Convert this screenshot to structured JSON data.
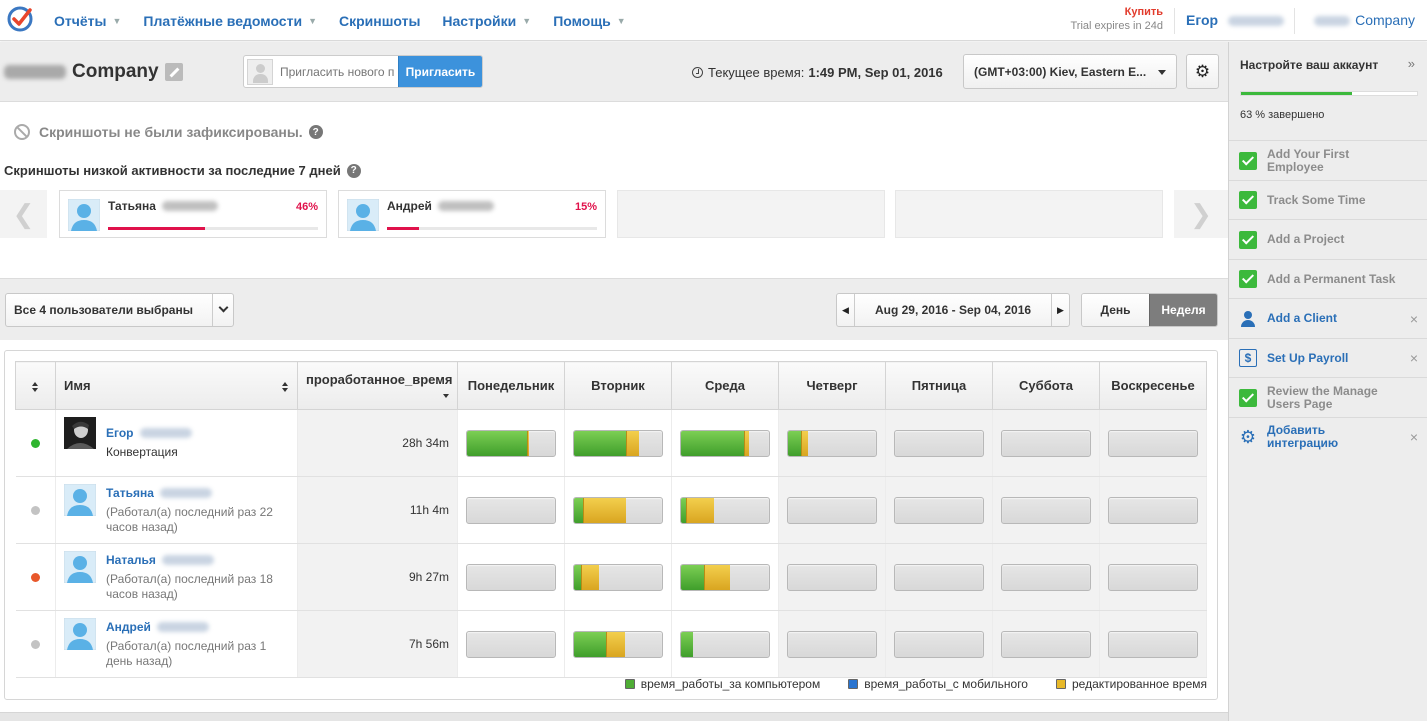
{
  "nav": {
    "items": [
      {
        "label": "Отчёты",
        "caret": true
      },
      {
        "label": "Платёжные ведомости",
        "caret": true
      },
      {
        "label": "Скриншоты",
        "caret": false
      },
      {
        "label": "Настройки",
        "caret": true
      },
      {
        "label": "Помощь",
        "caret": true
      }
    ],
    "buy_label": "Купить",
    "trial_text": "Trial expires in 24d",
    "user_first_name": "Егор",
    "company_label": "Company"
  },
  "header": {
    "company_title": "Company",
    "invite_placeholder": "Пригласить нового п",
    "invite_button": "Пригласить",
    "time_label": "Текущее время:",
    "time_value": "1:49 PM, Sep 01, 2016",
    "timezone": "(GMT+03:00) Kiev, Eastern E..."
  },
  "screenshots": {
    "none_message": "Скриншоты не были зафиксированы.",
    "low_activity_title": "Скриншоты низкой активности за последние 7 дней",
    "cards": [
      {
        "name": "Татьяна",
        "percent": "46%",
        "fill": 0.46
      },
      {
        "name": "Андрей",
        "percent": "15%",
        "fill": 0.15
      }
    ]
  },
  "filters": {
    "users_select": "Все 4 пользователи выбраны",
    "date_range": "Aug 29, 2016 - Sep 04, 2016",
    "period_day": "День",
    "period_week": "Неделя",
    "active_period": "Неделя"
  },
  "table": {
    "headers": {
      "name": "Имя",
      "worked": "проработанное_время",
      "days": [
        "Понедельник",
        "Вторник",
        "Среда",
        "Четверг",
        "Пятница",
        "Суббота",
        "Воскресенье"
      ]
    },
    "rows": [
      {
        "status_color": "#2fb52f",
        "first_name": "Егор",
        "subtitle": "Конвертация",
        "hours": "28h 34m",
        "avatar": "photo",
        "days": [
          {
            "g": 0.68,
            "y": 0.02
          },
          {
            "g": 0.59,
            "y": 0.15
          },
          {
            "g": 0.72,
            "y": 0.05
          },
          {
            "g": 0.15,
            "y": 0.08
          },
          null,
          null,
          null
        ]
      },
      {
        "status_color": "#c3c3c3",
        "first_name": "Татьяна",
        "subtitle": "(Работал(а) последний раз 22 часов назад)",
        "hours": "11h 4m",
        "avatar": "default",
        "days": [
          null,
          {
            "g": 0.1,
            "y": 0.49
          },
          {
            "g": 0.06,
            "y": 0.31
          },
          null,
          null,
          null,
          null
        ]
      },
      {
        "status_color": "#e8582b",
        "first_name": "Наталья",
        "subtitle": "(Работал(а) последний раз 18 часов назад)",
        "hours": "9h 27m",
        "avatar": "default",
        "days": [
          null,
          {
            "g": 0.08,
            "y": 0.2
          },
          {
            "g": 0.26,
            "y": 0.3
          },
          null,
          null,
          null,
          null
        ]
      },
      {
        "status_color": "#c3c3c3",
        "first_name": "Андрей",
        "subtitle": "(Работал(а) последний раз 1 день назад)",
        "hours": "7h 56m",
        "avatar": "default",
        "days": [
          null,
          {
            "g": 0.36,
            "y": 0.22
          },
          {
            "g": 0.14,
            "y": 0
          },
          null,
          null,
          null,
          null
        ]
      }
    ]
  },
  "legend": {
    "computer": {
      "label": "время_работы_за компьютером",
      "color": "#4fad35"
    },
    "mobile": {
      "label": "время_работы_с мобильного",
      "color": "#2a74d0"
    },
    "edited": {
      "label": "редактированное время",
      "color": "#e8b929"
    }
  },
  "setup": {
    "title": "Настройте ваш аккаунт",
    "progress": 0.63,
    "progress_text": "63 % завершено",
    "tasks": [
      {
        "label": "Add Your First Employee",
        "done": true,
        "icon": "check-icon"
      },
      {
        "label": "Track Some Time",
        "done": true,
        "icon": "check-icon"
      },
      {
        "label": "Add a Project",
        "done": true,
        "icon": "check-icon"
      },
      {
        "label": "Add a Permanent Task",
        "done": true,
        "icon": "check-icon"
      },
      {
        "label": "Add a Client",
        "done": false,
        "icon": "person-icon"
      },
      {
        "label": "Set Up Payroll",
        "done": false,
        "icon": "dollar-icon"
      },
      {
        "label": "Review the Manage Users Page",
        "done": true,
        "icon": "check-icon"
      },
      {
        "label": "Добавить интеграцию",
        "done": false,
        "icon": "gear-icon"
      }
    ]
  }
}
